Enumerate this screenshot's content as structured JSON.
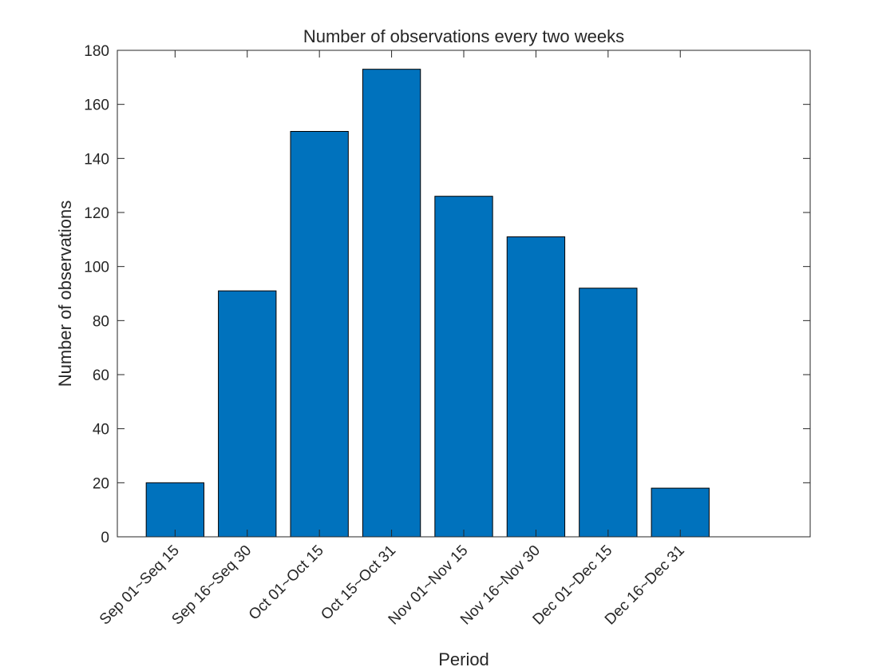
{
  "chart_data": {
    "type": "bar",
    "title": "Number of observations every two weeks",
    "xlabel": "Period",
    "ylabel": "Number of observations",
    "categories": [
      "Sep 01~Seq 15",
      "Sep 16~Seq 30",
      "Oct 01~Oct 15",
      "Oct 15~Oct 31",
      "Nov 01~Nov 15",
      "Nov 16~Nov 30",
      "Dec 01~Dec 15",
      "Dec 16~Dec 31"
    ],
    "values": [
      20,
      91,
      150,
      173,
      126,
      111,
      92,
      18
    ],
    "ylim": [
      0,
      180
    ],
    "yticks": [
      0,
      20,
      40,
      60,
      80,
      100,
      120,
      140,
      160,
      180
    ],
    "xlim": [
      0.2,
      9.8
    ],
    "grid": false,
    "legend": "none",
    "bar_color": "#0072BD",
    "edge_color": "#000000"
  }
}
